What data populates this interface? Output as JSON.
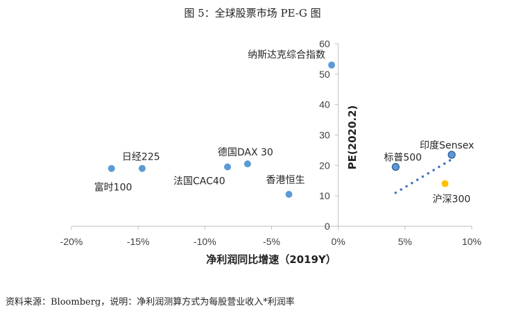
{
  "header": {
    "title": "图 5：全球股票市场 PE-G 图"
  },
  "footer": {
    "note": "资料来源：Bloomberg，说明：净利润测算方式为每股营业收入*利润率"
  },
  "chart_data": {
    "type": "scatter",
    "xlabel": "净利润同比增速（2019Y）",
    "ylabel": "PE(2020.2)",
    "xlim": [
      -0.2,
      0.1
    ],
    "ylim": [
      0,
      60
    ],
    "x_ticks": [
      -0.2,
      -0.15,
      -0.1,
      -0.05,
      0,
      0.05,
      0.1
    ],
    "x_tick_labels": [
      "-20%",
      "-15%",
      "-10%",
      "-5%",
      "0%",
      "5%",
      "10%"
    ],
    "y_ticks": [
      0,
      10,
      20,
      30,
      40,
      50,
      60
    ],
    "y_tick_labels": [
      "0",
      "10",
      "20",
      "30",
      "40",
      "50",
      "60"
    ],
    "grid": false,
    "points": [
      {
        "label": "纳斯达克综合指数",
        "x": -0.005,
        "y": 53,
        "color": "#5B9BD5",
        "outlined": false
      },
      {
        "label": "富时100",
        "x": -0.17,
        "y": 19,
        "color": "#5B9BD5",
        "outlined": false
      },
      {
        "label": "日经225",
        "x": -0.147,
        "y": 19,
        "color": "#5B9BD5",
        "outlined": false
      },
      {
        "label": "法国CAC40",
        "x": -0.083,
        "y": 19.5,
        "color": "#5B9BD5",
        "outlined": false
      },
      {
        "label": "德国DAX 30",
        "x": -0.068,
        "y": 20.5,
        "color": "#5B9BD5",
        "outlined": false
      },
      {
        "label": "香港恒生",
        "x": -0.037,
        "y": 10.5,
        "color": "#5B9BD5",
        "outlined": false
      },
      {
        "label": "标普500",
        "x": 0.043,
        "y": 19.5,
        "color": "#5B9BD5",
        "outlined": true
      },
      {
        "label": "印度Sensex",
        "x": 0.085,
        "y": 23.5,
        "color": "#5B9BD5",
        "outlined": true
      },
      {
        "label": "沪深300",
        "x": 0.08,
        "y": 14,
        "color": "#FFC000",
        "outlined": false
      }
    ],
    "trendline": {
      "x": [
        0.043,
        0.085
      ],
      "y": [
        11,
        22
      ],
      "color": "#4472C4",
      "style": "dotted"
    }
  }
}
